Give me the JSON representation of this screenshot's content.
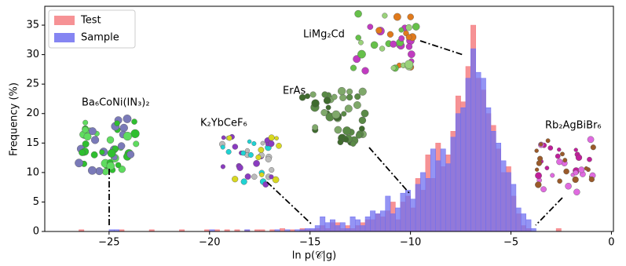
{
  "chart_data": {
    "type": "histogram",
    "xlabel": "ln p(𝒞|g)",
    "ylabel": "Frequency (%)",
    "bins": [
      -26.5,
      -26.25,
      -26,
      -25.75,
      -25.5,
      -25.25,
      -25,
      -24.75,
      -24.5,
      -24.25,
      -24,
      -23.75,
      -23.5,
      -23.25,
      -23,
      -22.75,
      -22.5,
      -22.25,
      -22,
      -21.75,
      -21.5,
      -21.25,
      -21,
      -20.75,
      -20.5,
      -20.25,
      -20,
      -19.75,
      -19.5,
      -19.25,
      -19,
      -18.75,
      -18.5,
      -18.25,
      -18,
      -17.75,
      -17.5,
      -17.25,
      -17,
      -16.75,
      -16.5,
      -16.25,
      -16,
      -15.75,
      -15.5,
      -15.25,
      -15,
      -14.75,
      -14.5,
      -14.25,
      -14,
      -13.75,
      -13.5,
      -13.25,
      -13,
      -12.75,
      -12.5,
      -12.25,
      -12,
      -11.75,
      -11.5,
      -11.25,
      -11,
      -10.75,
      -10.5,
      -10.25,
      -10,
      -9.75,
      -9.5,
      -9.25,
      -9,
      -8.75,
      -8.5,
      -8.25,
      -8,
      -7.75,
      -7.5,
      -7.25,
      -7,
      -6.75,
      -6.5,
      -6.25,
      -6,
      -5.75,
      -5.5,
      -5.25,
      -5,
      -4.75,
      -4.5,
      -4.25,
      -4,
      -3.75,
      -3.5,
      -3.25,
      -3,
      -2.75,
      -2.5
    ],
    "series": [
      {
        "name": "Test",
        "color": "#f47f83",
        "values": [
          0.3,
          0,
          0,
          0,
          0,
          0,
          0,
          0,
          0.3,
          0,
          0,
          0,
          0,
          0,
          0.3,
          0,
          0,
          0,
          0,
          0,
          0.3,
          0,
          0,
          0,
          0,
          0.3,
          0,
          0.3,
          0,
          0.3,
          0,
          0.3,
          0,
          0.3,
          0,
          0.3,
          0.3,
          0,
          0.3,
          0,
          0.5,
          0,
          0.3,
          0,
          0.5,
          0.3,
          0.3,
          0.5,
          1,
          0.5,
          1.5,
          1.5,
          0.5,
          1,
          0.5,
          1,
          1.5,
          2,
          2,
          3,
          2.5,
          3.5,
          5,
          2,
          5,
          6,
          4,
          9,
          7,
          13,
          9,
          15,
          11,
          13,
          17,
          23,
          22,
          28,
          35,
          26,
          24,
          20,
          18,
          14,
          10,
          11,
          6,
          3,
          1,
          0.5,
          0,
          0,
          0,
          0,
          0,
          0.5
        ]
      },
      {
        "name": "Sample",
        "color": "#7070f0",
        "values": [
          0,
          0,
          0,
          0,
          0,
          0,
          0.3,
          0.3,
          0,
          0,
          0,
          0,
          0,
          0,
          0,
          0,
          0,
          0,
          0,
          0,
          0,
          0,
          0,
          0,
          0,
          0,
          0.3,
          0,
          0,
          0,
          0,
          0,
          0,
          0.3,
          0,
          0,
          0,
          0,
          0,
          0.3,
          0,
          0.3,
          0,
          0.3,
          0.3,
          0.5,
          0.5,
          1,
          2.5,
          1.5,
          2,
          1,
          1.5,
          0.5,
          2.5,
          2,
          1,
          2.5,
          3.5,
          3,
          3.5,
          6,
          3,
          4,
          6.5,
          7,
          5.5,
          8,
          10,
          9,
          14,
          12,
          14,
          11.5,
          16,
          20,
          21,
          26,
          31,
          27,
          26,
          21,
          17,
          15,
          12,
          10,
          8,
          4,
          3,
          2,
          0.5,
          0,
          0,
          0,
          0,
          0
        ]
      }
    ],
    "xlim": [
      -28.2,
      0.1
    ],
    "ylim": [
      0,
      38.2
    ],
    "xticks": [
      {
        "value": -25,
        "label": "−25"
      },
      {
        "value": -20,
        "label": "−20"
      },
      {
        "value": -15,
        "label": "−15"
      },
      {
        "value": -10,
        "label": "−10"
      },
      {
        "value": -5,
        "label": "−5"
      },
      0
    ],
    "yticks": [
      0,
      5,
      10,
      15,
      20,
      25,
      30,
      35
    ],
    "legend": "upper left",
    "annotations": [
      "LiMg₂Cd",
      "ErAs",
      "K₂YbCeF₆",
      "Ba₆CoNi(IN₃)₂",
      "Rb₂AgBiBr₆"
    ]
  }
}
